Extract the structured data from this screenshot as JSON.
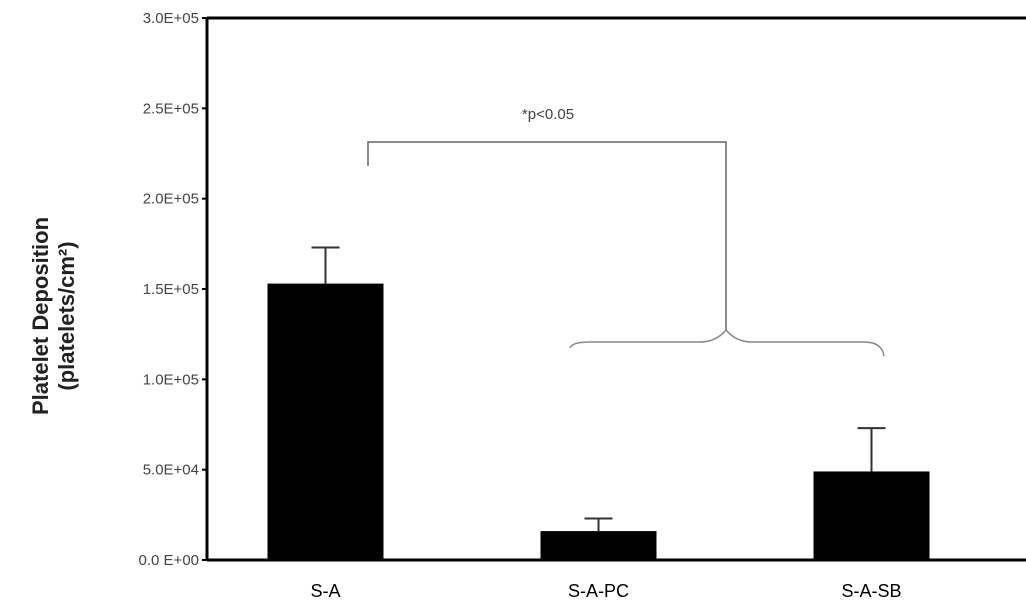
{
  "chart_data": {
    "type": "bar",
    "categories": [
      "S-A",
      "S-A-PC",
      "S-A-SB"
    ],
    "values": [
      153000,
      16000,
      49000
    ],
    "errors": [
      20000,
      7000,
      24000
    ],
    "xlabel": "",
    "ylabel": "Platelet Deposition",
    "ylabel_units": "(platelets/cm²)",
    "ylim": [
      0,
      300000
    ],
    "yticks": [
      0,
      50000,
      100000,
      150000,
      200000,
      250000,
      300000
    ],
    "ytick_labels": [
      "0.0 E+00",
      "5.0E+04",
      "1.0E+05",
      "1.5E+05",
      "2.0E+05",
      "2.5E+05",
      "3.0E+05"
    ],
    "annotation": "*p<0.05",
    "grid": false,
    "bar_color": "#000000"
  }
}
